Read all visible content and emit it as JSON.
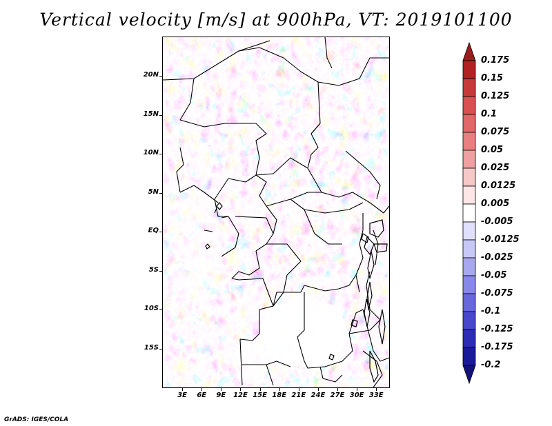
{
  "title": "Vertical velocity [m/s] at 900hPa, VT: 2019101100",
  "footer": "GrADS: IGES/COLA",
  "map": {
    "lat_labels": [
      "20N",
      "15N",
      "10N",
      "5N",
      "EQ",
      "5S",
      "10S",
      "15S"
    ],
    "lat_values": [
      20,
      15,
      10,
      5,
      0,
      -5,
      -10,
      -15
    ],
    "lon_labels": [
      "3E",
      "6E",
      "9E",
      "12E",
      "15E",
      "18E",
      "21E",
      "24E",
      "27E",
      "30E",
      "33E"
    ],
    "lon_values": [
      3,
      6,
      9,
      12,
      15,
      18,
      21,
      24,
      27,
      30,
      33
    ],
    "lon_range": [
      0,
      35
    ],
    "lat_range": [
      -20,
      25
    ]
  },
  "colorbar": {
    "labels": [
      "0.175",
      "0.15",
      "0.125",
      "0.1",
      "0.075",
      "0.05",
      "0.025",
      "0.0125",
      "0.005",
      "-0.005",
      "-0.0125",
      "-0.025",
      "-0.05",
      "-0.075",
      "-0.1",
      "-0.125",
      "-0.175",
      "-0.2"
    ],
    "colors": [
      "#9b1c1c",
      "#b22222",
      "#c73a3a",
      "#d85050",
      "#e06868",
      "#e88080",
      "#f0a0a0",
      "#f7c8c8",
      "#fce6e6",
      "#ffffff",
      "#e0e0fc",
      "#c8c8f8",
      "#a8a8f0",
      "#8888e8",
      "#6868dc",
      "#4848cc",
      "#2c2cb4",
      "#1a1a98",
      "#12127a"
    ]
  }
}
